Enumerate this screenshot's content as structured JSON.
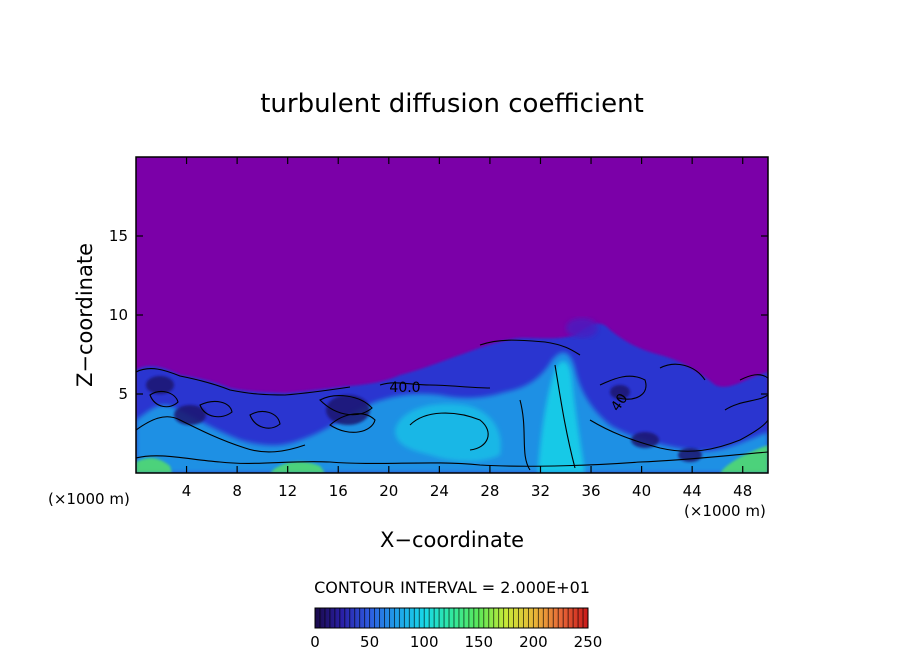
{
  "chart_data": {
    "type": "heatmap",
    "title": "turbulent diffusion coefficient",
    "xlabel": "X−coordinate",
    "ylabel": "Z−coordinate",
    "x_unit": "(×1000 m)",
    "y_unit": "(×1000 m)",
    "xlim": [
      0,
      50
    ],
    "ylim": [
      0,
      20
    ],
    "x_ticks": [
      4,
      8,
      12,
      16,
      20,
      24,
      28,
      32,
      36,
      40,
      44,
      48
    ],
    "y_ticks": [
      5,
      10,
      15
    ],
    "contour_interval_text": "CONTOUR INTERVAL = 2.000E+01",
    "contour_labels": [
      {
        "text": "40.0",
        "x": 23,
        "z": 5.3
      },
      {
        "text": "40",
        "x": 39,
        "z": 4.6
      }
    ],
    "colorbar": {
      "min": 0,
      "max": 250,
      "ticks": [
        0,
        50,
        100,
        150,
        200,
        250
      ],
      "colors": [
        "#1a0a4a",
        "#2a20a8",
        "#2e5ce0",
        "#1fa0e8",
        "#18d8e8",
        "#30e8a0",
        "#5ce858",
        "#c8e838",
        "#e8b838",
        "#e86838",
        "#c81818"
      ]
    },
    "field_summary": {
      "background_value": 0,
      "background_color": "#7b00a8",
      "boundary_layer_top_z": 6.5,
      "plume_peak": {
        "x": 35,
        "z": 10
      }
    }
  }
}
